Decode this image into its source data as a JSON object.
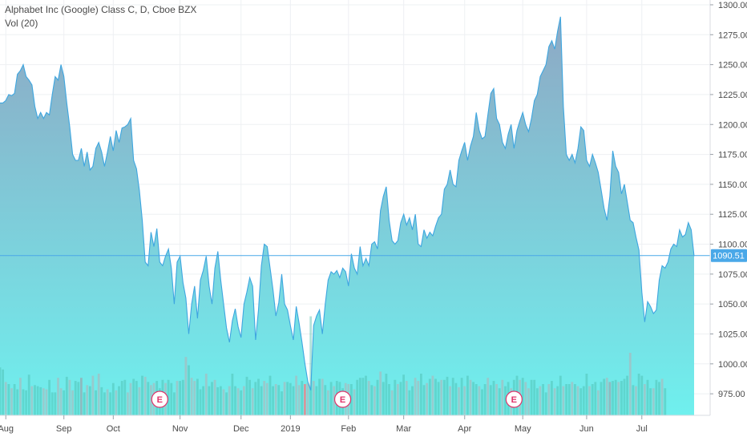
{
  "header": {
    "title": "Alphabet Inc (Google) Class C, D, Cboe BZX",
    "indicator": "Vol (20)"
  },
  "colors": {
    "line": "#3ea6e0",
    "area_top": "#8ea8c4",
    "area_bottom": "#6ff0ee",
    "price_line": "#4aa8e8",
    "volume_up": "#47b7a6",
    "volume_down": "#e8868d",
    "earnings": "#e0336a",
    "grid": "#eef0f3"
  },
  "chart_data": {
    "type": "area",
    "title": "Alphabet Inc (Google) Class C, D, Cboe BZX",
    "xlabel": "",
    "ylabel": "",
    "ylim": [
      957,
      1304
    ],
    "y_ticks": [
      975,
      1000,
      1025,
      1050,
      1075,
      1100,
      1125,
      1150,
      1175,
      1200,
      1225,
      1250,
      1275,
      1300
    ],
    "x_tick_labels": [
      "Aug",
      "Sep",
      "Oct",
      "Nov",
      "Dec",
      "2019",
      "Feb",
      "Mar",
      "Apr",
      "May",
      "Jun",
      "Jul"
    ],
    "x_tick_index": [
      2,
      22,
      39,
      62,
      83,
      100,
      120,
      139,
      160,
      180,
      202,
      221
    ],
    "last_price": 1090.51,
    "last_price_label": "1090.51",
    "grid": true,
    "legend": "none",
    "series": [
      {
        "values": [
          1218,
          1218,
          1220,
          1225,
          1224,
          1226,
          1242,
          1245,
          1250,
          1240,
          1237,
          1233,
          1215,
          1205,
          1210,
          1205,
          1210,
          1208,
          1225,
          1240,
          1237,
          1250,
          1240,
          1218,
          1198,
          1175,
          1170,
          1170,
          1180,
          1165,
          1177,
          1162,
          1165,
          1180,
          1185,
          1177,
          1165,
          1177,
          1190,
          1178,
          1195,
          1185,
          1197,
          1198,
          1200,
          1205,
          1170,
          1163,
          1145,
          1120,
          1085,
          1082,
          1110,
          1098,
          1113,
          1085,
          1082,
          1090,
          1096,
          1080,
          1050,
          1085,
          1090,
          1068,
          1055,
          1025,
          1050,
          1065,
          1038,
          1070,
          1078,
          1090,
          1065,
          1050,
          1080,
          1094,
          1070,
          1050,
          1030,
          1018,
          1036,
          1046,
          1031,
          1022,
          1050,
          1060,
          1072,
          1065,
          1020,
          1045,
          1082,
          1100,
          1098,
          1080,
          1062,
          1040,
          1051,
          1075,
          1050,
          1045,
          1032,
          1020,
          1048,
          1034,
          1018,
          1000,
          985,
          978,
          1032,
          1040,
          1045,
          1025,
          1050,
          1070,
          1077,
          1075,
          1078,
          1072,
          1080,
          1077,
          1065,
          1092,
          1080,
          1075,
          1098,
          1082,
          1088,
          1082,
          1100,
          1102,
          1096,
          1128,
          1140,
          1148,
          1120,
          1103,
          1100,
          1103,
          1118,
          1125,
          1116,
          1122,
          1112,
          1125,
          1100,
          1098,
          1112,
          1105,
          1110,
          1107,
          1115,
          1122,
          1125,
          1146,
          1150,
          1162,
          1150,
          1148,
          1170,
          1178,
          1185,
          1170,
          1182,
          1190,
          1210,
          1195,
          1188,
          1190,
          1208,
          1226,
          1230,
          1205,
          1200,
          1185,
          1180,
          1192,
          1200,
          1180,
          1195,
          1203,
          1210,
          1200,
          1194,
          1205,
          1220,
          1225,
          1240,
          1245,
          1250,
          1265,
          1270,
          1263,
          1278,
          1290,
          1215,
          1175,
          1170,
          1175,
          1168,
          1180,
          1198,
          1195,
          1170,
          1165,
          1175,
          1168,
          1160,
          1145,
          1130,
          1120,
          1140,
          1178,
          1165,
          1160,
          1142,
          1150,
          1135,
          1120,
          1118,
          1106,
          1095,
          1060,
          1035,
          1052,
          1048,
          1042,
          1045,
          1070,
          1082,
          1080,
          1085,
          1096,
          1100,
          1098,
          1112,
          1106,
          1108,
          1118,
          1112,
          1090
        ]
      }
    ],
    "volume": {
      "values": [
        46,
        44,
        32,
        30,
        26,
        30,
        25,
        36,
        25,
        24,
        39,
        28,
        29,
        28,
        27,
        26,
        25,
        34,
        22,
        22,
        36,
        26,
        24,
        37,
        34,
        24,
        33,
        32,
        36,
        22,
        29,
        28,
        38,
        24,
        40,
        27,
        22,
        25,
        22,
        31,
        24,
        28,
        33,
        34,
        22,
        31,
        35,
        33,
        27,
        38,
        37,
        32,
        29,
        31,
        33,
        26,
        34,
        31,
        34,
        31,
        22,
        33,
        33,
        34,
        56,
        48,
        36,
        33,
        35,
        25,
        28,
        40,
        28,
        32,
        34,
        27,
        28,
        25,
        22,
        28,
        40,
        28,
        26,
        24,
        28,
        37,
        34,
        26,
        32,
        35,
        28,
        33,
        31,
        38,
        28,
        30,
        29,
        23,
        32,
        32,
        31,
        28,
        38,
        29,
        33,
        30,
        31,
        95,
        33,
        28,
        35,
        35,
        29,
        24,
        32,
        28,
        33,
        32,
        26,
        31,
        30,
        30,
        25,
        34,
        36,
        36,
        38,
        33,
        29,
        28,
        34,
        42,
        32,
        40,
        30,
        24,
        34,
        30,
        32,
        39,
        33,
        24,
        28,
        36,
        33,
        40,
        29,
        31,
        35,
        38,
        35,
        32,
        34,
        34,
        37,
        28,
        36,
        31,
        27,
        36,
        28,
        38,
        34,
        32,
        30,
        28,
        25,
        30,
        36,
        29,
        33,
        30,
        26,
        34,
        28,
        32,
        26,
        34,
        38,
        34,
        36,
        32,
        26,
        34,
        34,
        26,
        28,
        30,
        22,
        30,
        33,
        26,
        28,
        38,
        28,
        30,
        30,
        32,
        30,
        28,
        26,
        28,
        40,
        28,
        30,
        32,
        24,
        32,
        35,
        36,
        32,
        33,
        34,
        32,
        33,
        35,
        38,
        60,
        29,
        28,
        40,
        38,
        30,
        34,
        26,
        26,
        34,
        32,
        35,
        26
      ],
      "direction": [
        "u",
        "u",
        "d",
        "u",
        "d",
        "u",
        "u",
        "d",
        "u",
        "u",
        "u",
        "d",
        "u",
        "u",
        "u",
        "d",
        "d",
        "u",
        "u",
        "u",
        "d",
        "d",
        "u",
        "u",
        "d",
        "d",
        "u",
        "u",
        "d",
        "u",
        "d",
        "u",
        "d",
        "u",
        "d",
        "u",
        "u",
        "d",
        "u",
        "u",
        "d",
        "u",
        "u",
        "u",
        "d",
        "d",
        "u",
        "u",
        "d",
        "u",
        "d",
        "u",
        "d",
        "d",
        "u",
        "u",
        "u",
        "d",
        "u",
        "u",
        "u",
        "d",
        "u",
        "u",
        "d",
        "u",
        "d",
        "d",
        "u",
        "u",
        "u",
        "d",
        "u",
        "u",
        "d",
        "u",
        "u",
        "d",
        "u",
        "d",
        "u",
        "u",
        "d",
        "u",
        "d",
        "u",
        "u",
        "d",
        "u",
        "u",
        "u",
        "d",
        "d",
        "u",
        "u",
        "d",
        "u",
        "u",
        "d",
        "u",
        "u",
        "u",
        "d",
        "d",
        "u",
        "u",
        "d",
        "u",
        "d",
        "u",
        "u",
        "d",
        "u",
        "d",
        "u",
        "d",
        "u",
        "u",
        "u",
        "d",
        "d",
        "u",
        "d",
        "u",
        "u",
        "u",
        "u",
        "d",
        "u",
        "d",
        "u",
        "d",
        "u",
        "u",
        "u",
        "d",
        "u",
        "d",
        "u",
        "u",
        "d",
        "u",
        "u",
        "d",
        "d",
        "u",
        "u",
        "d",
        "u",
        "d",
        "u",
        "u",
        "d",
        "u",
        "u",
        "d",
        "u",
        "u",
        "d",
        "u",
        "d",
        "u",
        "d",
        "u",
        "u",
        "d",
        "u",
        "u",
        "d",
        "u",
        "u",
        "d",
        "u",
        "d",
        "u",
        "u",
        "d",
        "u",
        "u",
        "d",
        "u",
        "d",
        "d",
        "u",
        "u",
        "u",
        "d",
        "u",
        "u",
        "d",
        "u",
        "d",
        "u",
        "u",
        "d",
        "u",
        "u",
        "d",
        "u",
        "d",
        "u",
        "u",
        "u",
        "d",
        "u",
        "u",
        "d",
        "u",
        "u",
        "d",
        "d",
        "u",
        "u",
        "d",
        "u",
        "u",
        "u",
        "d",
        "u",
        "d",
        "u",
        "u",
        "d",
        "u",
        "u",
        "d",
        "u",
        "u",
        "d",
        "u",
        "u",
        "d",
        "u",
        "u",
        "u"
      ],
      "highlight_up_index": [
        28,
        210
      ],
      "highlight_down_index": [
        105
      ],
      "max": 100
    },
    "earnings_markers": [
      {
        "label": "E",
        "index": 55
      },
      {
        "label": "E",
        "index": 118
      },
      {
        "label": "E",
        "index": 177
      }
    ]
  }
}
